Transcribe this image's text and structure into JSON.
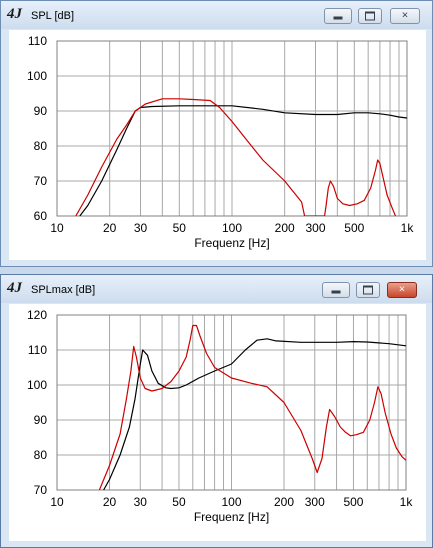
{
  "windows": [
    {
      "title": "SPL [dB]",
      "logo": "4J",
      "buttons": {
        "minimize": "minimize",
        "maximize": "restore",
        "close": "×"
      }
    },
    {
      "title": "SPLmax [dB]",
      "logo": "4J",
      "buttons": {
        "minimize": "minimize",
        "maximize": "restore",
        "close": "×"
      }
    }
  ],
  "chart_data": [
    {
      "type": "line",
      "xlabel": "Frequenz [Hz]",
      "ylabel": "",
      "xscale": "log",
      "xlim": [
        10,
        1000
      ],
      "ylim": [
        60,
        110
      ],
      "xticks": [
        10,
        20,
        30,
        50,
        100,
        200,
        300,
        500,
        1000
      ],
      "xtick_labels": [
        "10",
        "20",
        "30",
        "50",
        "100",
        "200",
        "300",
        "500",
        "1k"
      ],
      "yticks": [
        60,
        70,
        80,
        90,
        100,
        110
      ],
      "grid": true,
      "series": [
        {
          "color": "#000000",
          "points": [
            [
              13.5,
              60
            ],
            [
              15,
              63
            ],
            [
              18,
              70
            ],
            [
              22,
              79
            ],
            [
              25,
              85
            ],
            [
              28,
              90
            ],
            [
              30,
              91
            ],
            [
              35,
              91.3
            ],
            [
              50,
              91.5
            ],
            [
              100,
              91.5
            ],
            [
              150,
              90.5
            ],
            [
              200,
              89.5
            ],
            [
              300,
              89
            ],
            [
              400,
              89
            ],
            [
              500,
              89.5
            ],
            [
              600,
              89.5
            ],
            [
              700,
              89.2
            ],
            [
              800,
              88.8
            ],
            [
              900,
              88.3
            ],
            [
              1000,
              88
            ]
          ]
        },
        {
          "color": "#cc0000",
          "points": [
            [
              12.8,
              60
            ],
            [
              15,
              66
            ],
            [
              18,
              74
            ],
            [
              22,
              82
            ],
            [
              25,
              86
            ],
            [
              28,
              90
            ],
            [
              32,
              92
            ],
            [
              40,
              93.5
            ],
            [
              50,
              93.5
            ],
            [
              60,
              93.3
            ],
            [
              75,
              93
            ],
            [
              85,
              91
            ],
            [
              100,
              87
            ],
            [
              120,
              82
            ],
            [
              150,
              76
            ],
            [
              200,
              70
            ],
            [
              250,
              64
            ],
            [
              260,
              60
            ],
            [
              338,
              60
            ],
            [
              345,
              63
            ],
            [
              355,
              68
            ],
            [
              365,
              70
            ],
            [
              380,
              68.5
            ],
            [
              400,
              65
            ],
            [
              430,
              63.5
            ],
            [
              470,
              63
            ],
            [
              520,
              63.5
            ],
            [
              570,
              64.5
            ],
            [
              620,
              68
            ],
            [
              660,
              73
            ],
            [
              680,
              76
            ],
            [
              700,
              75
            ],
            [
              730,
              71
            ],
            [
              770,
              66
            ],
            [
              820,
              62.5
            ],
            [
              860,
              60
            ]
          ]
        }
      ]
    },
    {
      "type": "line",
      "xlabel": "Frequenz [Hz]",
      "ylabel": "",
      "xscale": "log",
      "xlim": [
        10,
        1000
      ],
      "ylim": [
        70,
        120
      ],
      "xticks": [
        10,
        20,
        30,
        50,
        100,
        200,
        300,
        500,
        1000
      ],
      "xtick_labels": [
        "10",
        "20",
        "30",
        "50",
        "100",
        "200",
        "300",
        "500",
        "1k"
      ],
      "yticks": [
        70,
        80,
        90,
        100,
        110,
        120
      ],
      "grid": true,
      "series": [
        {
          "color": "#000000",
          "points": [
            [
              18.5,
              70
            ],
            [
              20,
              73
            ],
            [
              23,
              80
            ],
            [
              26,
              88
            ],
            [
              28,
              96
            ],
            [
              30,
              106
            ],
            [
              31,
              110
            ],
            [
              33,
              108.5
            ],
            [
              35,
              104
            ],
            [
              38,
              100.5
            ],
            [
              42,
              99.2
            ],
            [
              45,
              99
            ],
            [
              50,
              99.2
            ],
            [
              55,
              100
            ],
            [
              65,
              102
            ],
            [
              80,
              104
            ],
            [
              100,
              106
            ],
            [
              120,
              110
            ],
            [
              140,
              112.8
            ],
            [
              160,
              113.2
            ],
            [
              180,
              112.6
            ],
            [
              250,
              112.2
            ],
            [
              400,
              112.2
            ],
            [
              500,
              112.4
            ],
            [
              600,
              112.3
            ],
            [
              800,
              111.8
            ],
            [
              1000,
              111.2
            ]
          ]
        },
        {
          "color": "#cc0000",
          "points": [
            [
              17.5,
              70
            ],
            [
              20,
              77
            ],
            [
              23,
              86
            ],
            [
              25,
              96
            ],
            [
              26.5,
              104
            ],
            [
              27.5,
              111
            ],
            [
              28.5,
              108
            ],
            [
              30,
              102
            ],
            [
              32,
              99
            ],
            [
              35,
              98.3
            ],
            [
              40,
              99
            ],
            [
              45,
              101
            ],
            [
              50,
              104
            ],
            [
              55,
              108
            ],
            [
              58,
              113
            ],
            [
              60,
              117
            ],
            [
              63,
              117
            ],
            [
              66,
              114
            ],
            [
              72,
              109
            ],
            [
              80,
              105
            ],
            [
              100,
              102
            ],
            [
              130,
              100.5
            ],
            [
              160,
              99.5
            ],
            [
              200,
              95
            ],
            [
              250,
              87
            ],
            [
              290,
              79
            ],
            [
              310,
              75
            ],
            [
              330,
              79
            ],
            [
              350,
              88
            ],
            [
              365,
              93
            ],
            [
              390,
              91
            ],
            [
              420,
              88
            ],
            [
              450,
              86.5
            ],
            [
              480,
              85.5
            ],
            [
              520,
              85.8
            ],
            [
              570,
              86.5
            ],
            [
              620,
              90
            ],
            [
              660,
              95
            ],
            [
              690,
              99.5
            ],
            [
              720,
              97.5
            ],
            [
              760,
              92
            ],
            [
              820,
              86
            ],
            [
              880,
              82
            ],
            [
              950,
              79.5
            ],
            [
              1000,
              78.5
            ]
          ]
        }
      ]
    }
  ]
}
